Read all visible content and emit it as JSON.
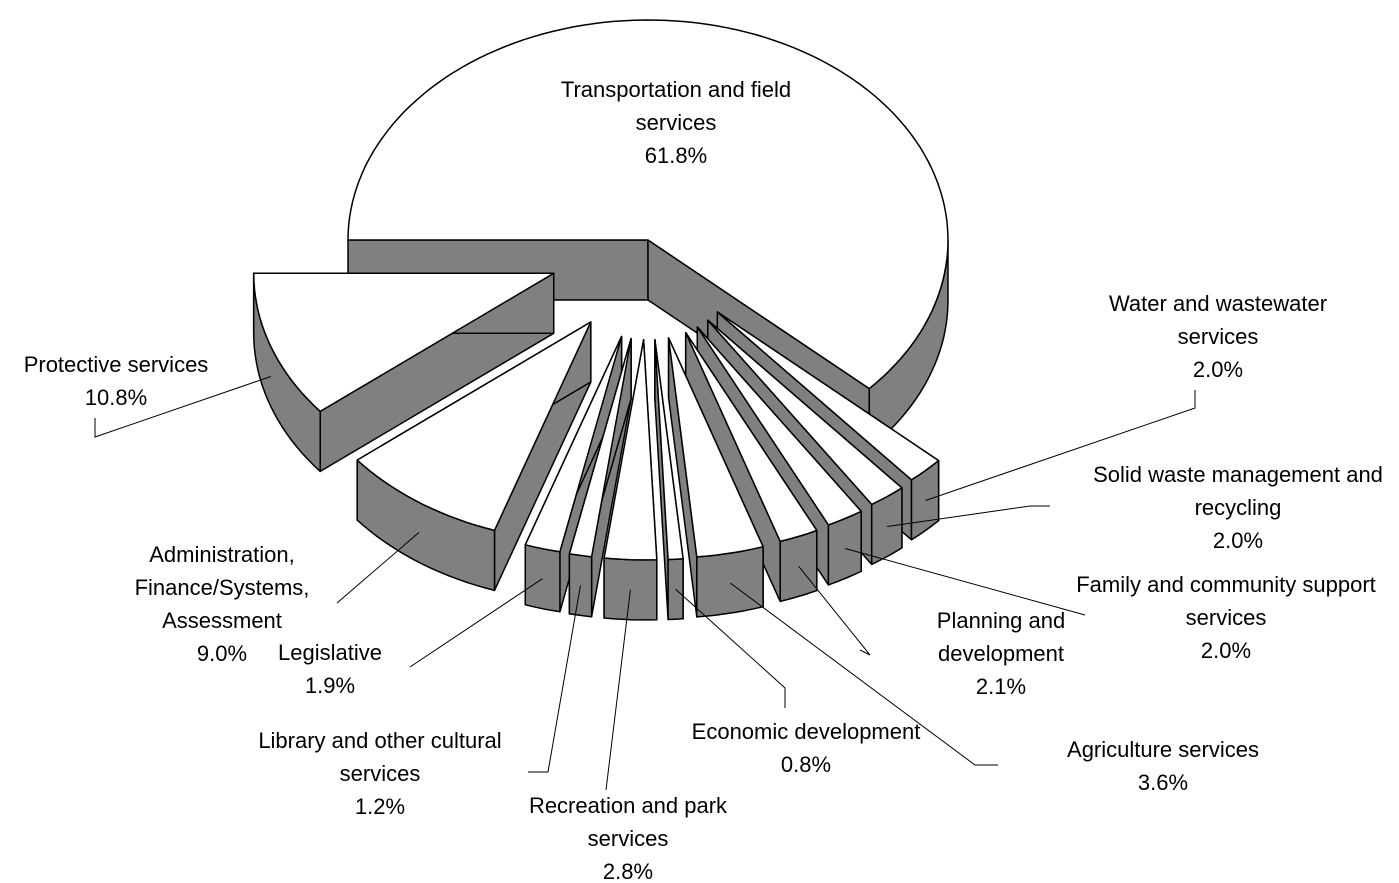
{
  "chart_data": {
    "type": "pie3d",
    "categories": [
      "Transportation and field services",
      "Water and wastewater services",
      "Solid waste management and recycling",
      "Family and community support services",
      "Planning and development",
      "Agriculture services",
      "Economic development",
      "Recreation and park services",
      "Library and other cultural services",
      "Legislative",
      "Administration, Finance/Systems, Assessment",
      "Protective services"
    ],
    "values": [
      61.8,
      2.0,
      2.0,
      2.0,
      2.1,
      3.6,
      0.8,
      2.8,
      1.2,
      1.9,
      9.0,
      10.8
    ],
    "value_labels": [
      "61.8%",
      "2.0%",
      "2.0%",
      "2.0%",
      "2.1%",
      "3.6%",
      "0.8%",
      "2.8%",
      "1.2%",
      "1.9%",
      "9.0%",
      "10.8%"
    ],
    "top_color": "#ffffff",
    "side_color": "#808080"
  }
}
